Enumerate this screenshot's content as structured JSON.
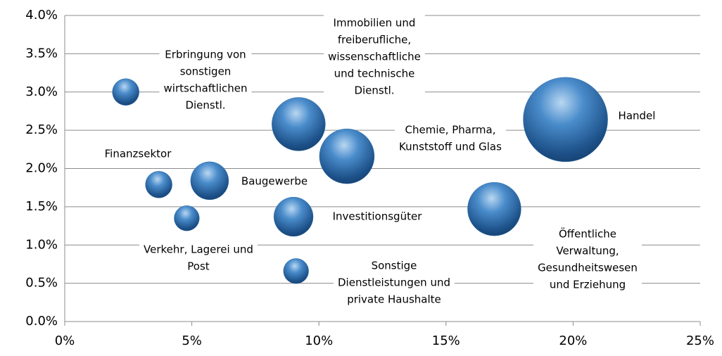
{
  "chart_data": {
    "type": "bubble",
    "categories": [
      [
        "Erbringung von",
        "sonstigen",
        "wirtschaftlichen",
        "Dienstl."
      ],
      [
        "Finanzsektor"
      ],
      [
        "Baugewerbe"
      ],
      [
        "Verkehr, Lagerei und",
        "Post"
      ],
      [
        "Immobilien und",
        "freiberufliche,",
        "wissenschaftliche",
        "und technische",
        "Dienstl."
      ],
      [
        "Chemie, Pharma,",
        "Kunststoff und Glas"
      ],
      [
        "Investitionsgüter"
      ],
      [
        "Sonstige",
        "Dienstleistungen und",
        "private Haushalte"
      ],
      [
        "Öffentliche",
        "Verwaltung,",
        "Gesundheitswesen",
        "und Erziehung"
      ],
      [
        "Handel"
      ]
    ],
    "x": [
      2.4,
      3.7,
      5.7,
      4.8,
      9.2,
      11.1,
      9.0,
      9.1,
      16.9,
      19.7
    ],
    "values": [
      3.0,
      1.79,
      1.84,
      1.35,
      2.58,
      2.16,
      1.37,
      0.66,
      1.47,
      2.64
    ],
    "sizes": [
      3.6,
      3.6,
      7.3,
      3.2,
      14.4,
      15.2,
      7.8,
      3.2,
      14.4,
      36
    ],
    "color": "#2e6ea8",
    "xlim": [
      0,
      25
    ],
    "xticks": [
      {
        "value": 0,
        "label": "0%"
      },
      {
        "value": 5,
        "label": "5%"
      },
      {
        "value": 10,
        "label": "10%"
      },
      {
        "value": 15,
        "label": "15%"
      },
      {
        "value": 20,
        "label": "20%"
      },
      {
        "value": 25,
        "label": "25%"
      }
    ],
    "ylim": [
      0,
      4
    ],
    "yticks": [
      {
        "value": 0,
        "label": "0.0%"
      },
      {
        "value": 0.5,
        "label": "0.5%"
      },
      {
        "value": 1,
        "label": "1.0%"
      },
      {
        "value": 1.5,
        "label": "1.5%"
      },
      {
        "value": 2,
        "label": "2.0%"
      },
      {
        "value": 2.5,
        "label": "2.5%"
      },
      {
        "value": 3,
        "label": "3.0%"
      },
      {
        "value": 3.5,
        "label": "3.5%"
      },
      {
        "value": 4,
        "label": "4.0%"
      }
    ],
    "grid": true
  }
}
